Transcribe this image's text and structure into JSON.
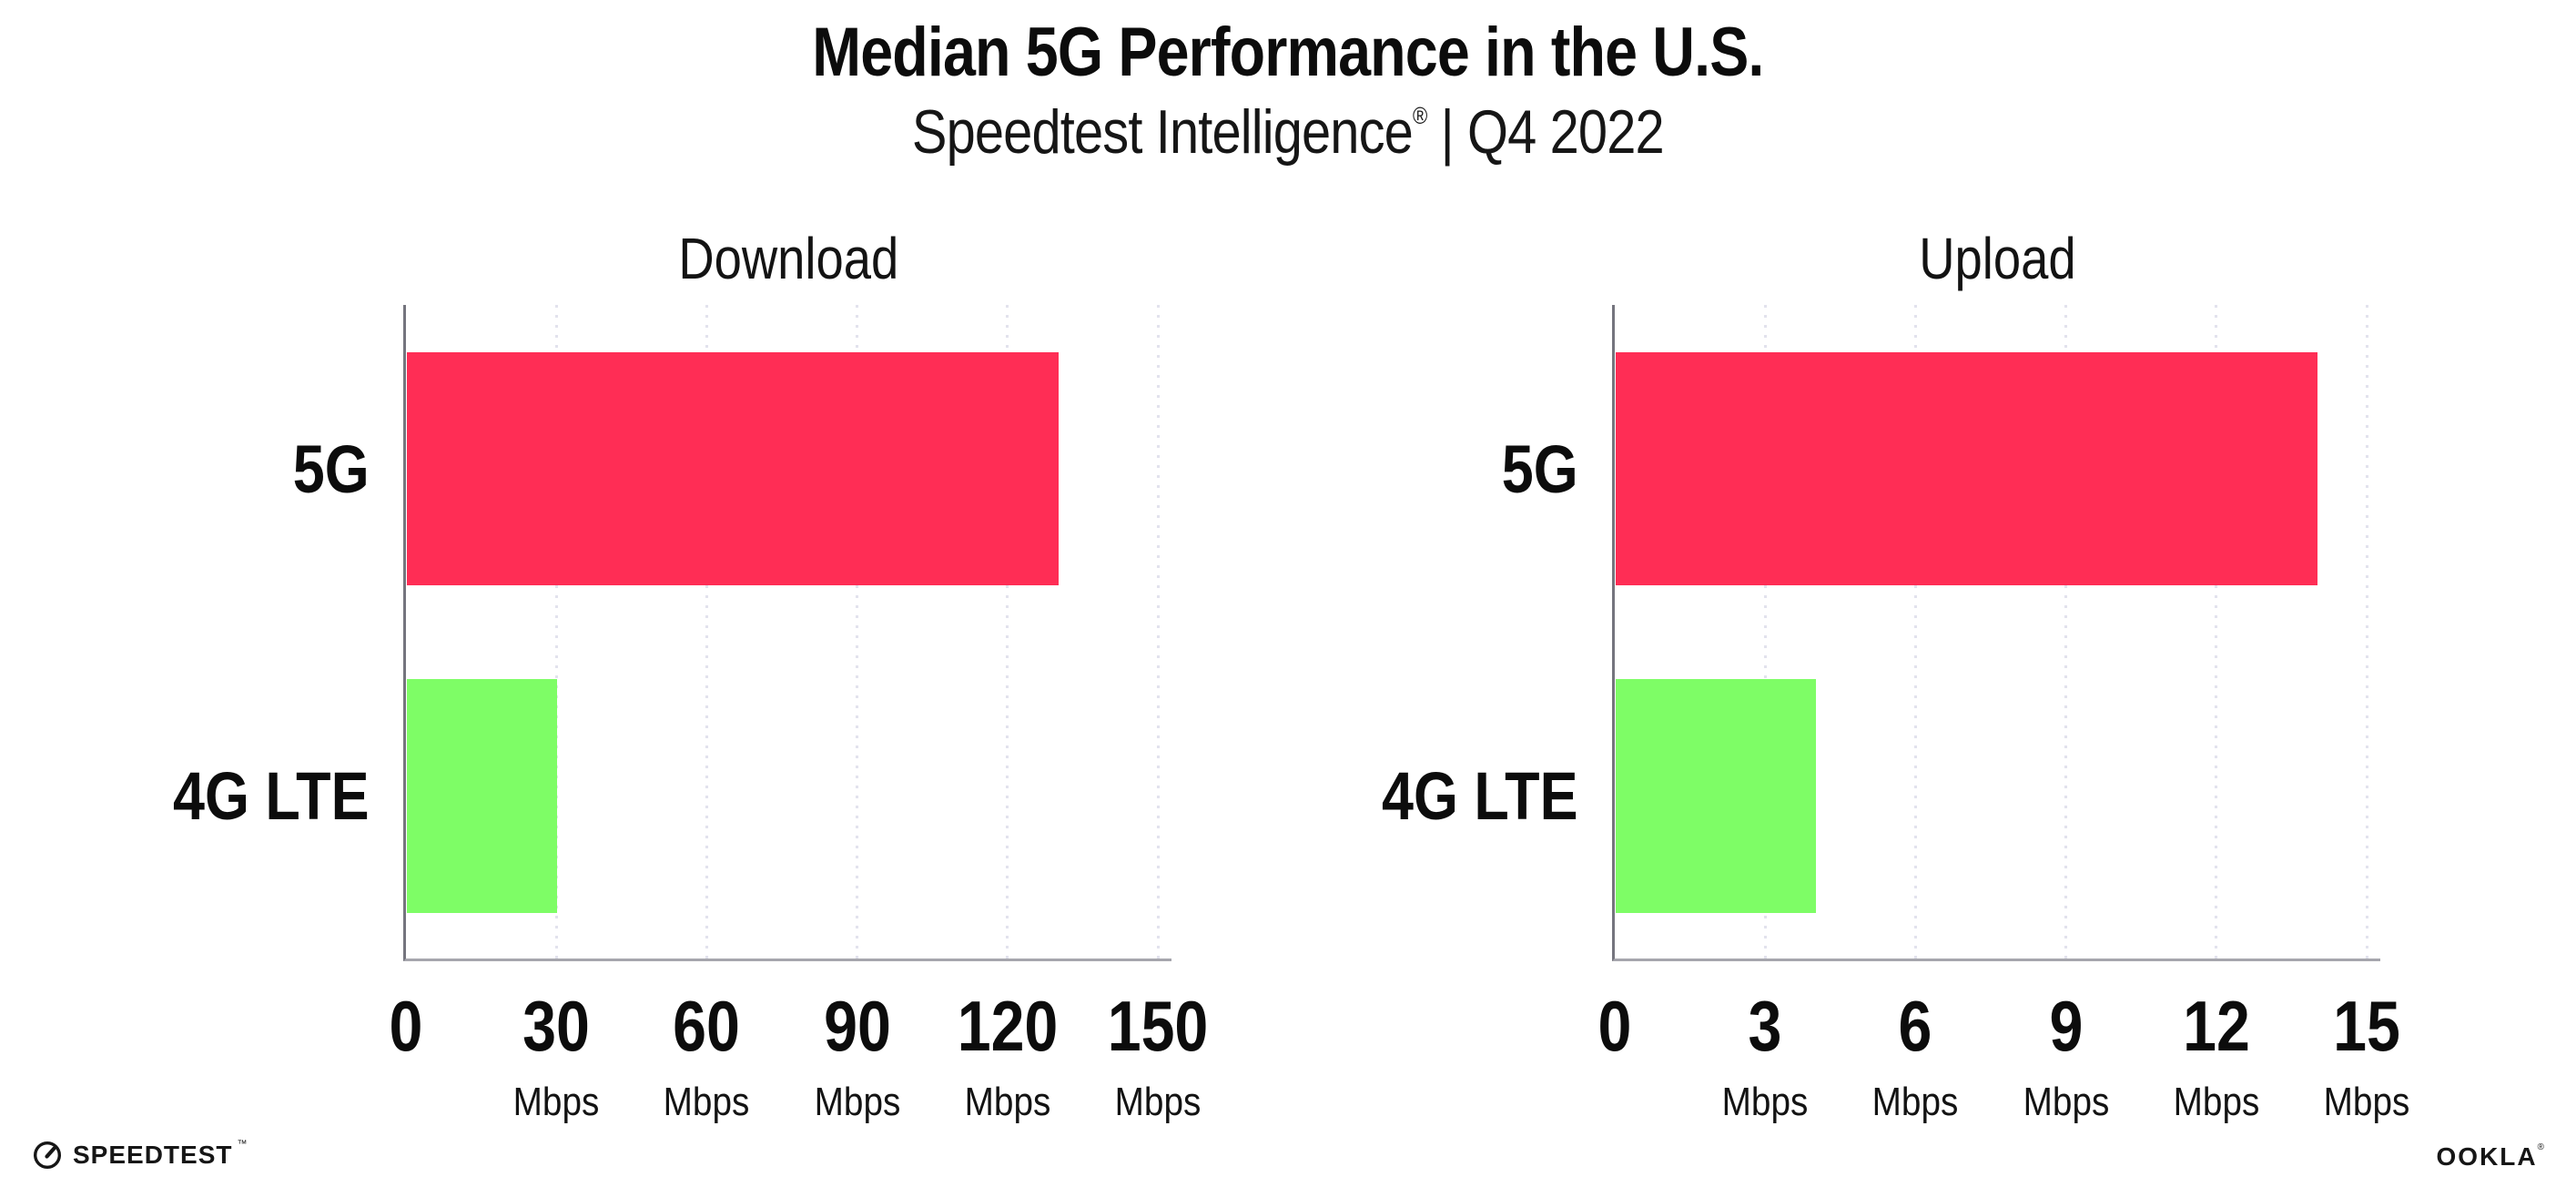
{
  "header": {
    "title": "Median 5G Performance in the U.S.",
    "subtitle_brand": "Speedtest Intelligence",
    "subtitle_reg": "®",
    "subtitle_rest": " | Q4 2022"
  },
  "chart_data": [
    {
      "type": "bar",
      "orientation": "horizontal",
      "title": "Download",
      "categories": [
        "5G",
        "4G LTE"
      ],
      "values": [
        130,
        30
      ],
      "unit": "Mbps",
      "xlim": [
        0,
        150
      ],
      "ticks": [
        0,
        30,
        60,
        90,
        120,
        150
      ],
      "bar_colors": [
        "#FF2D55",
        "#7EFD66"
      ],
      "grid": "vertical-dotted",
      "legend": "none"
    },
    {
      "type": "bar",
      "orientation": "horizontal",
      "title": "Upload",
      "categories": [
        "5G",
        "4G LTE"
      ],
      "values": [
        14,
        4
      ],
      "unit": "Mbps",
      "xlim": [
        0,
        15
      ],
      "ticks": [
        0,
        3,
        6,
        9,
        12,
        15
      ],
      "bar_colors": [
        "#FF2D55",
        "#7EFD66"
      ],
      "grid": "vertical-dotted",
      "legend": "none"
    }
  ],
  "footer": {
    "speedtest_label": "SPEEDTEST",
    "speedtest_mark": "™",
    "ookla_label": "OOKLA",
    "ookla_mark": "®"
  },
  "colors": {
    "bar_5g": "#FF2D55",
    "bar_4g_lte": "#7EFD66",
    "gridline": "#E2E2ED",
    "axis_y": "#75757E",
    "axis_x": "#A6A6AD",
    "text": "#0C0C0C"
  }
}
